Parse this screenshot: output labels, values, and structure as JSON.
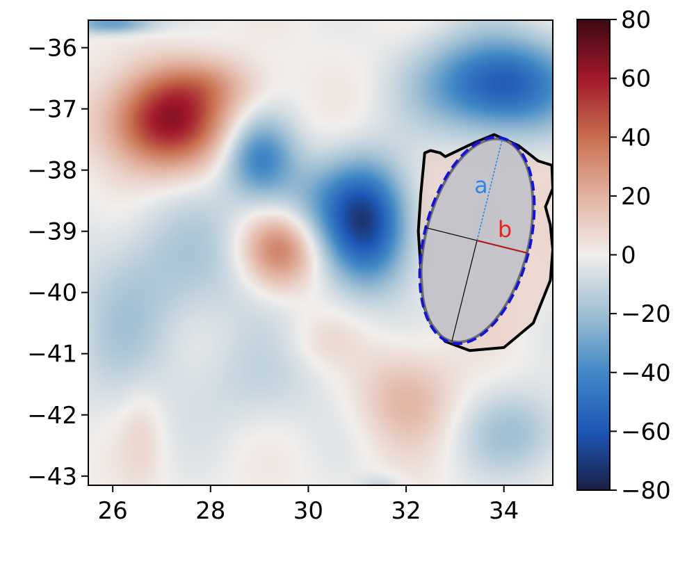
{
  "chart_data": {
    "type": "heatmap",
    "title": "",
    "xlabel": "",
    "ylabel": "",
    "xlim": [
      25.5,
      35.0
    ],
    "ylim": [
      -43.15,
      -35.55
    ],
    "x_ticks": [
      26,
      28,
      30,
      32,
      34
    ],
    "x_tick_labels": [
      "26",
      "28",
      "30",
      "32",
      "34"
    ],
    "y_ticks": [
      -36,
      -37,
      -38,
      -39,
      -40,
      -41,
      -42,
      -43
    ],
    "y_tick_labels": [
      "−36",
      "−37",
      "−38",
      "−39",
      "−40",
      "−41",
      "−42",
      "−43"
    ],
    "colorbar": {
      "range": [
        -80,
        80
      ],
      "ticks": [
        80,
        60,
        40,
        20,
        0,
        -20,
        -40,
        -60,
        -80
      ],
      "tick_labels": [
        "80",
        "60",
        "40",
        "20",
        "0",
        "−20",
        "−40",
        "−60",
        "−80"
      ],
      "colormap": "red-white-blue (balance)",
      "stops": [
        {
          "value": -80,
          "color": "#1b1f45"
        },
        {
          "value": -60,
          "color": "#1e57b8"
        },
        {
          "value": -40,
          "color": "#3f88c5"
        },
        {
          "value": -20,
          "color": "#9fbfd3"
        },
        {
          "value": 0,
          "color": "#f1eeec"
        },
        {
          "value": 20,
          "color": "#e2b2a0"
        },
        {
          "value": 40,
          "color": "#c86f4f"
        },
        {
          "value": 60,
          "color": "#a1182b"
        },
        {
          "value": 80,
          "color": "#3c0912"
        }
      ]
    },
    "field_features": [
      {
        "kind": "warm",
        "x": 27.1,
        "y": -37.2,
        "amplitude": 62,
        "sx": 0.85,
        "sy": 0.55
      },
      {
        "kind": "warm",
        "x": 28.0,
        "y": -36.6,
        "amplitude": 15,
        "sx": 0.8,
        "sy": 0.3
      },
      {
        "kind": "warm",
        "x": 29.4,
        "y": -39.3,
        "amplitude": 40,
        "sx": 0.55,
        "sy": 0.45
      },
      {
        "kind": "warm",
        "x": 32.0,
        "y": -41.7,
        "amplitude": 18,
        "sx": 0.7,
        "sy": 0.55
      },
      {
        "kind": "warm",
        "x": 26.6,
        "y": -42.3,
        "amplitude": 8,
        "sx": 0.3,
        "sy": 0.6
      },
      {
        "kind": "warm",
        "x": 30.3,
        "y": -40.8,
        "amplitude": 6,
        "sx": 0.5,
        "sy": 0.3
      },
      {
        "kind": "cold",
        "x": 33.9,
        "y": -36.6,
        "amplitude": -60,
        "sx": 1.05,
        "sy": 0.55
      },
      {
        "kind": "cold",
        "x": 31.2,
        "y": -38.9,
        "amplitude": -62,
        "sx": 0.6,
        "sy": 0.7
      },
      {
        "kind": "cold",
        "x": 29.0,
        "y": -37.8,
        "amplitude": -40,
        "sx": 0.5,
        "sy": 0.45
      },
      {
        "kind": "cold",
        "x": 30.2,
        "y": -38.5,
        "amplitude": -20,
        "sx": 0.8,
        "sy": 0.5
      },
      {
        "kind": "cold",
        "x": 27.6,
        "y": -39.5,
        "amplitude": -15,
        "sx": 1.3,
        "sy": 0.8
      },
      {
        "kind": "cold",
        "x": 26.2,
        "y": -40.8,
        "amplitude": -12,
        "sx": 0.8,
        "sy": 0.9
      },
      {
        "kind": "cold",
        "x": 29.0,
        "y": -41.5,
        "amplitude": -10,
        "sx": 1.0,
        "sy": 0.6
      },
      {
        "kind": "cold",
        "x": 34.3,
        "y": -42.3,
        "amplitude": -18,
        "sx": 0.8,
        "sy": 0.5
      },
      {
        "kind": "cold",
        "x": 26.0,
        "y": -35.6,
        "amplitude": -35,
        "sx": 0.6,
        "sy": 0.12
      },
      {
        "kind": "cold",
        "x": 31.5,
        "y": -43.2,
        "amplitude": -12,
        "sx": 0.3,
        "sy": 0.15
      }
    ],
    "eddy_fit": {
      "center": [
        33.45,
        -39.15
      ],
      "semi_axis_a_deg": 1.7,
      "semi_axis_b_deg": 1.35,
      "tilt_deg": 14,
      "fill_color": "#b7bcc7",
      "outline_color": "#6e6e6e",
      "dashed_ellipse_color": "#1414d8",
      "contour_color": "#000000",
      "contour_points": [
        [
          32.38,
          -37.72
        ],
        [
          32.5,
          -37.68
        ],
        [
          32.7,
          -37.72
        ],
        [
          32.8,
          -37.78
        ],
        [
          33.4,
          -37.55
        ],
        [
          33.8,
          -37.42
        ],
        [
          34.3,
          -37.6
        ],
        [
          34.7,
          -37.85
        ],
        [
          34.98,
          -37.92
        ],
        [
          35.0,
          -38.3
        ],
        [
          34.85,
          -38.6
        ],
        [
          34.95,
          -38.9
        ],
        [
          35.0,
          -39.3
        ],
        [
          34.95,
          -39.8
        ],
        [
          34.6,
          -40.5
        ],
        [
          34.0,
          -40.9
        ],
        [
          33.3,
          -40.95
        ],
        [
          32.8,
          -40.8
        ],
        [
          32.5,
          -40.5
        ],
        [
          32.35,
          -40.2
        ],
        [
          32.3,
          -39.6
        ],
        [
          32.25,
          -39.0
        ],
        [
          32.3,
          -38.4
        ],
        [
          32.38,
          -37.72
        ]
      ],
      "labels": {
        "a": "a",
        "b": "b"
      },
      "a_color": "#2f86e6",
      "b_color": "#e8221c"
    }
  }
}
